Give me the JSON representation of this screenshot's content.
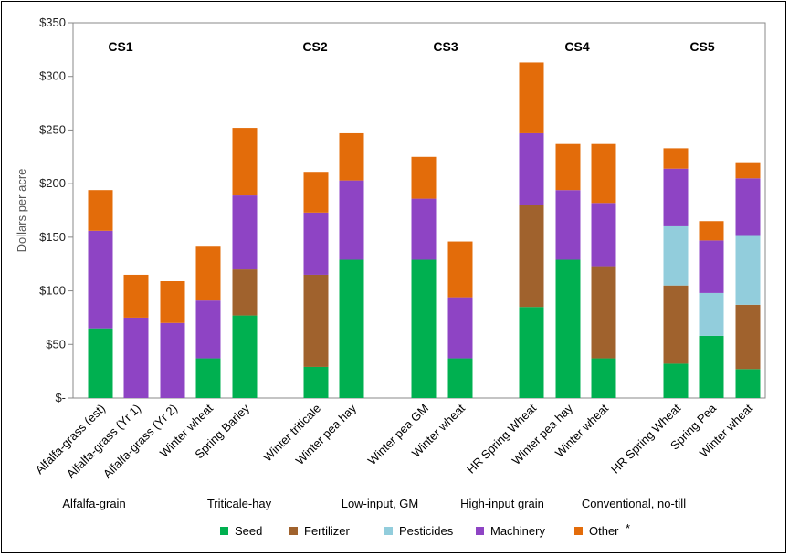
{
  "chart_data": {
    "type": "bar",
    "stacked": true,
    "ylabel": "Dollars per acre",
    "ylim": [
      0,
      350
    ],
    "yticks": [
      {
        "value": 0,
        "label": "$-"
      },
      {
        "value": 50,
        "label": "$50"
      },
      {
        "value": 100,
        "label": "$100"
      },
      {
        "value": 150,
        "label": "$150"
      },
      {
        "value": 200,
        "label": "$200"
      },
      {
        "value": 250,
        "label": "$250"
      },
      {
        "value": 300,
        "label": "$300"
      },
      {
        "value": 350,
        "label": "$350"
      }
    ],
    "grid": false,
    "legend_position": "bottom",
    "legend_note": "*",
    "groups": [
      {
        "label": "CS1",
        "system": "Alfalfa-grain"
      },
      {
        "label": "CS2",
        "system": "Triticale-hay"
      },
      {
        "label": "CS3",
        "system": "Low-input, GM"
      },
      {
        "label": "CS4",
        "system": "High-input grain"
      },
      {
        "label": "CS5",
        "system": "Conventional, no-till"
      }
    ],
    "categories": [
      "Alfalfa-grass (est)",
      "Alfalfa-grass (Yr 1)",
      "Alfalfa-grass (Yr 2)",
      "Winter wheat",
      "Spring Barley",
      "Winter triticale",
      "Winter pea hay",
      "Winter pea GM",
      "Winter wheat",
      "HR Spring Wheat",
      "Winter pea hay",
      "Winter wheat",
      "HR Spring Wheat",
      "Spring Pea",
      "Winter wheat"
    ],
    "category_group": [
      0,
      0,
      0,
      0,
      0,
      1,
      1,
      2,
      2,
      3,
      3,
      3,
      4,
      4,
      4
    ],
    "series": [
      {
        "name": "Seed",
        "color": "#00b050",
        "values": [
          65,
          0,
          0,
          37,
          77,
          29,
          129,
          129,
          37,
          85,
          129,
          37,
          32,
          58,
          27
        ]
      },
      {
        "name": "Fertilizer",
        "color": "#a0622d",
        "values": [
          0,
          0,
          0,
          0,
          43,
          86,
          0,
          0,
          0,
          95,
          0,
          86,
          73,
          0,
          60
        ]
      },
      {
        "name": "Pesticides",
        "color": "#92cddc",
        "values": [
          0,
          0,
          0,
          0,
          0,
          0,
          0,
          0,
          0,
          0,
          0,
          0,
          56,
          40,
          65
        ]
      },
      {
        "name": "Machinery",
        "color": "#8e44c4",
        "values": [
          91,
          75,
          70,
          54,
          69,
          58,
          74,
          57,
          57,
          67,
          65,
          59,
          53,
          49,
          53
        ]
      },
      {
        "name": "Other",
        "color": "#e36c0a",
        "values": [
          38,
          40,
          39,
          51,
          63,
          38,
          44,
          39,
          52,
          66,
          43,
          55,
          19,
          18,
          15
        ]
      }
    ]
  }
}
